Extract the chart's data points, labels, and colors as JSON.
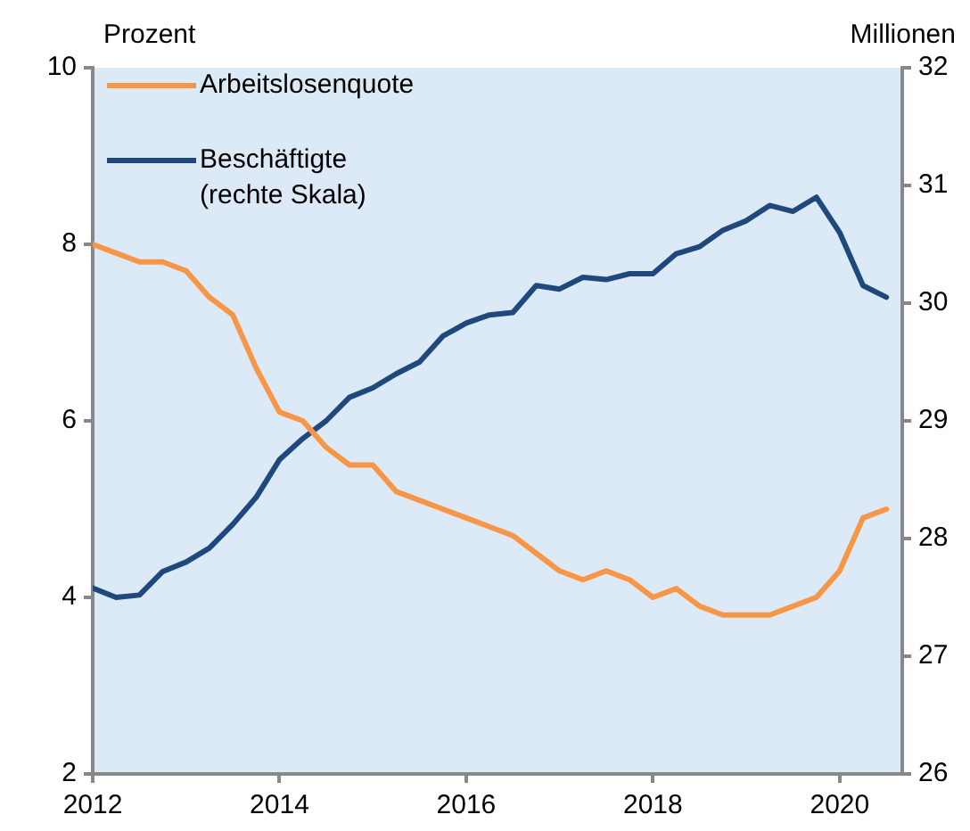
{
  "chart_data": {
    "type": "line",
    "ylabel": "Prozent",
    "y2label": "Millionen",
    "x": [
      2012,
      2012.25,
      2012.5,
      2012.75,
      2013,
      2013.25,
      2013.5,
      2013.75,
      2014,
      2014.25,
      2014.5,
      2014.75,
      2015,
      2015.25,
      2015.5,
      2015.75,
      2016,
      2016.25,
      2016.5,
      2016.75,
      2017,
      2017.25,
      2017.5,
      2017.75,
      2018,
      2018.25,
      2018.5,
      2018.75,
      2019,
      2019.25,
      2019.5,
      2019.75,
      2020,
      2020.25,
      2020.5
    ],
    "series": [
      {
        "name": "Arbeitslosenquote",
        "color": "#f79646",
        "values": [
          8.0,
          7.9,
          7.8,
          7.8,
          7.7,
          7.4,
          7.2,
          6.6,
          6.1,
          6.0,
          5.7,
          5.5,
          5.5,
          5.2,
          5.1,
          5.0,
          4.9,
          4.8,
          4.7,
          4.5,
          4.3,
          4.2,
          4.3,
          4.2,
          4.0,
          4.1,
          3.9,
          3.8,
          3.8,
          3.8,
          3.9,
          4.0,
          4.3,
          4.9,
          5.0
        ]
      },
      {
        "name": "Beschäftigte\n(rechte Skala)",
        "color": "#1f497d",
        "axis": "y2",
        "values": [
          27.58,
          27.5,
          27.52,
          27.72,
          27.8,
          27.92,
          28.12,
          28.35,
          28.67,
          28.85,
          29.0,
          29.2,
          29.28,
          29.4,
          29.5,
          29.72,
          29.83,
          29.9,
          29.92,
          30.15,
          30.12,
          30.22,
          30.2,
          30.25,
          30.25,
          30.42,
          30.48,
          30.62,
          30.7,
          30.83,
          30.78,
          30.9,
          30.6,
          30.15,
          30.05
        ]
      }
    ],
    "xlim": [
      2012,
      2020.67
    ],
    "xticks": [
      2012,
      2014,
      2016,
      2018,
      2020
    ],
    "ylim": [
      2,
      10
    ],
    "yticks": [
      2,
      4,
      6,
      8,
      10
    ],
    "y2lim": [
      26,
      32
    ],
    "y2ticks": [
      26,
      27,
      28,
      29,
      30,
      31,
      32
    ],
    "grid": false,
    "legend": "top left",
    "marker": "none",
    "line_style": "solid"
  }
}
